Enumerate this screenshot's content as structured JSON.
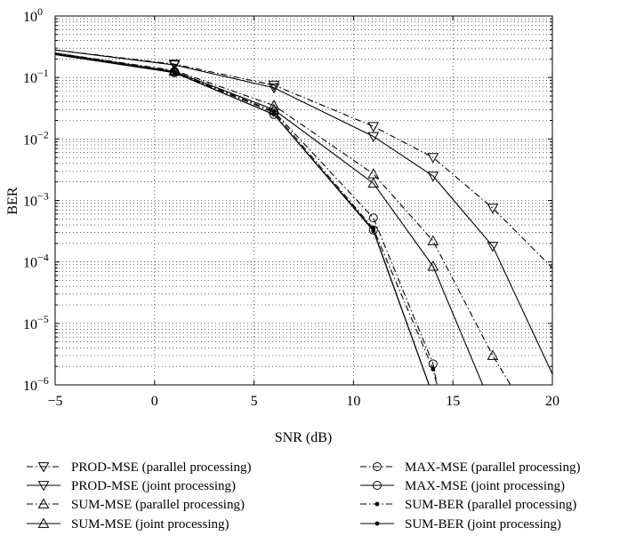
{
  "chart_data": {
    "type": "line",
    "xlabel": "SNR (dB)",
    "ylabel": "BER",
    "xlim": [
      -5,
      20
    ],
    "ylim": [
      1e-06,
      1
    ],
    "y_scale": "log",
    "grid": true,
    "legend_position": "below",
    "x_ticks": [
      {
        "value": -5,
        "label": "−5"
      },
      {
        "value": 0,
        "label": "0"
      },
      {
        "value": 5,
        "label": "5"
      },
      {
        "value": 10,
        "label": "10"
      },
      {
        "value": 15,
        "label": "15"
      },
      {
        "value": 20,
        "label": "20"
      }
    ],
    "y_ticks": [
      {
        "value": 1,
        "base": "10",
        "exp": "0"
      },
      {
        "value": 0.1,
        "base": "10",
        "exp": "−1"
      },
      {
        "value": 0.01,
        "base": "10",
        "exp": "−2"
      },
      {
        "value": 0.001,
        "base": "10",
        "exp": "−3"
      },
      {
        "value": 0.0001,
        "base": "10",
        "exp": "−4"
      },
      {
        "value": 1e-05,
        "base": "10",
        "exp": "−5"
      },
      {
        "value": 1e-06,
        "base": "10",
        "exp": "−6"
      }
    ],
    "series": [
      {
        "name": "PROD-MSE (parallel processing)",
        "line": "dashdot",
        "marker": "triangle-down",
        "x": [
          -5,
          1,
          6,
          11,
          14,
          17,
          20
        ],
        "y": [
          0.28,
          0.165,
          0.075,
          0.016,
          0.005,
          0.00075,
          8e-05
        ]
      },
      {
        "name": "PROD-MSE (joint processing)",
        "line": "solid",
        "marker": "triangle-down",
        "x": [
          -5,
          1,
          6,
          11,
          14,
          17,
          20
        ],
        "y": [
          0.28,
          0.16,
          0.068,
          0.011,
          0.0025,
          0.00018,
          1.5e-06
        ]
      },
      {
        "name": "SUM-MSE (parallel processing)",
        "line": "dashdot",
        "marker": "triangle-up",
        "x": [
          -5,
          1,
          6,
          11,
          14,
          17,
          17.9
        ],
        "y": [
          0.25,
          0.13,
          0.035,
          0.0027,
          0.00022,
          3e-06,
          1e-06
        ]
      },
      {
        "name": "SUM-MSE (joint processing)",
        "line": "solid",
        "marker": "triangle-up",
        "x": [
          -5,
          1,
          6,
          11,
          14,
          16.5
        ],
        "y": [
          0.25,
          0.125,
          0.03,
          0.0019,
          8.5e-05,
          1e-06
        ]
      },
      {
        "name": "MAX-MSE (parallel processing)",
        "line": "dashdot",
        "marker": "circle",
        "x": [
          -5,
          1,
          6,
          11,
          14,
          14.2
        ],
        "y": [
          0.24,
          0.125,
          0.028,
          0.00052,
          2.2e-06,
          1e-06
        ]
      },
      {
        "name": "MAX-MSE (joint processing)",
        "line": "solid",
        "marker": "circle",
        "x": [
          -5,
          1,
          6,
          11,
          13.8
        ],
        "y": [
          0.24,
          0.12,
          0.025,
          0.00033,
          1e-06
        ]
      },
      {
        "name": "SUM-BER (parallel processing)",
        "line": "dashdot",
        "marker": "dot",
        "x": [
          -5,
          1,
          6,
          11,
          14,
          14.2
        ],
        "y": [
          0.24,
          0.122,
          0.027,
          0.00035,
          1.8e-06,
          1e-06
        ]
      },
      {
        "name": "SUM-BER (joint processing)",
        "line": "solid",
        "marker": "dot",
        "x": [
          -5,
          1,
          6,
          11,
          13.8
        ],
        "y": [
          0.235,
          0.12,
          0.025,
          0.00032,
          1e-06
        ]
      }
    ]
  }
}
